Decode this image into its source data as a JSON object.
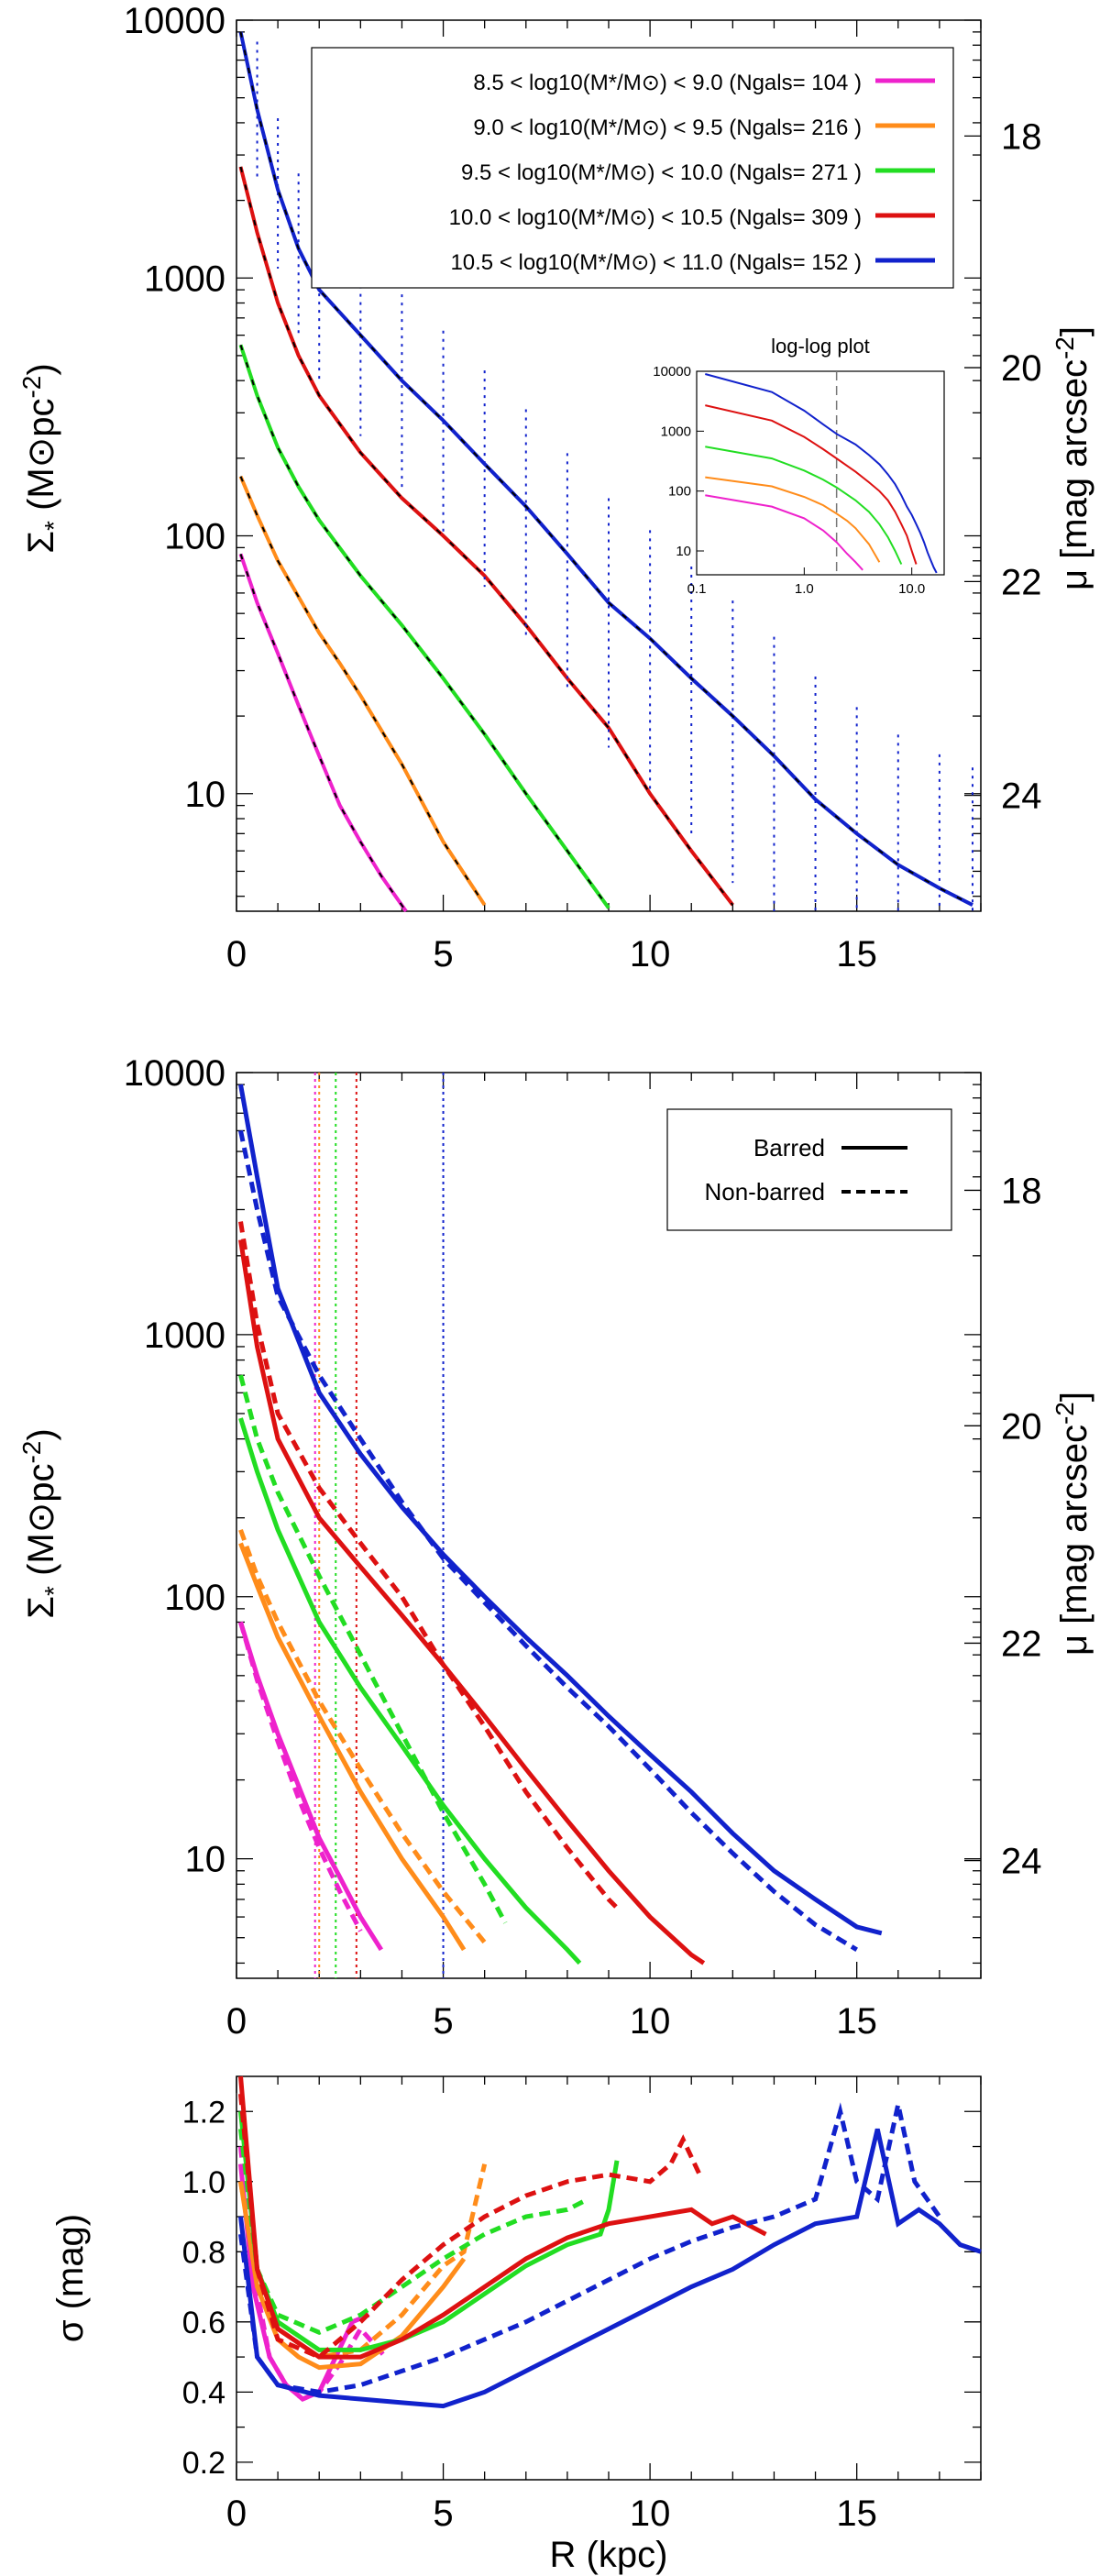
{
  "chart_data": [
    {
      "type": "line",
      "panel": "top",
      "ylabel_left": "Σ* (M⊙pc-2)",
      "ylabel_right": "μ [mag arcsec-2]",
      "xlim": [
        0,
        18
      ],
      "ylim": [
        3.5,
        10000
      ],
      "yscale": "log",
      "xticks": [
        "0",
        "5",
        "10",
        "15"
      ],
      "yticks": [
        "10",
        "100",
        "1000",
        "10000"
      ],
      "right_ticks": [
        "18",
        "20",
        "22",
        "24"
      ],
      "legend_location": "top-right",
      "legend": [
        {
          "label": "8.5 < log10(M*/M⊙) < 9.0  (Ngals= 104 )",
          "color": "#ee22cc"
        },
        {
          "label": "9.0 < log10(M*/M⊙) < 9.5  (Ngals= 216 )",
          "color": "#ff8c1a"
        },
        {
          "label": "9.5 < log10(M*/M⊙) < 10.0  (Ngals= 271 )",
          "color": "#22dd22"
        },
        {
          "label": "10.0 < log10(M*/M⊙) < 10.5  (Ngals= 309 )",
          "color": "#dd1111"
        },
        {
          "label": "10.5 < log10(M*/M⊙) < 11.0  (Ngals= 152 )",
          "color": "#1122cc"
        }
      ],
      "series": [
        {
          "color": "#ee22cc",
          "x": [
            0.1,
            0.5,
            1,
            1.5,
            2,
            2.5,
            3,
            3.5,
            4.1
          ],
          "y": [
            85,
            55,
            35,
            22,
            14,
            9,
            6.5,
            4.8,
            3.5
          ]
        },
        {
          "color": "#ff8c1a",
          "x": [
            0.1,
            0.5,
            1,
            1.5,
            2,
            2.5,
            3,
            4,
            5,
            6
          ],
          "y": [
            170,
            120,
            80,
            58,
            42,
            32,
            24,
            13,
            6.5,
            3.7
          ]
        },
        {
          "color": "#22dd22",
          "x": [
            0.1,
            0.5,
            1,
            1.5,
            2,
            3,
            4,
            5,
            6,
            7,
            8,
            9
          ],
          "y": [
            550,
            350,
            220,
            155,
            115,
            70,
            45,
            28,
            17,
            10,
            6,
            3.6
          ]
        },
        {
          "color": "#dd1111",
          "x": [
            0.1,
            0.5,
            1,
            1.5,
            2,
            3,
            4,
            5,
            6,
            7,
            8,
            9,
            10,
            11,
            12
          ],
          "y": [
            2700,
            1500,
            800,
            500,
            350,
            210,
            140,
            100,
            70,
            45,
            28,
            18,
            10,
            6,
            3.7
          ]
        },
        {
          "color": "#1122cc",
          "x": [
            0.1,
            0.5,
            1,
            1.5,
            2,
            3,
            4,
            5,
            6,
            7,
            8,
            9,
            10,
            11,
            12,
            13,
            14,
            15,
            16,
            17,
            17.8
          ],
          "y": [
            9000,
            4500,
            2200,
            1300,
            900,
            600,
            400,
            280,
            190,
            130,
            85,
            55,
            40,
            28,
            20,
            14,
            9.5,
            7,
            5.3,
            4.3,
            3.7
          ]
        }
      ],
      "inset": {
        "title": "log-log plot",
        "xscale": "log",
        "yscale": "log",
        "xlim": [
          0.1,
          20
        ],
        "ylim": [
          4,
          10000
        ],
        "xticks": [
          "0.1",
          "1.0",
          "10.0"
        ],
        "yticks": [
          "10",
          "100",
          "1000",
          "10000"
        ],
        "vline_x": 2.0
      }
    },
    {
      "type": "line",
      "panel": "middle",
      "ylabel_left": "Σ* (M⊙pc-2)",
      "ylabel_right": "μ [mag arcsec-2]",
      "xlim": [
        0,
        18
      ],
      "ylim": [
        3.5,
        10000
      ],
      "yscale": "log",
      "xticks": [
        "0",
        "5",
        "10",
        "15"
      ],
      "yticks": [
        "10",
        "100",
        "1000",
        "10000"
      ],
      "right_ticks": [
        "18",
        "20",
        "22",
        "24"
      ],
      "legend_location": "top-right",
      "legend": [
        {
          "label": "Barred",
          "style": "solid"
        },
        {
          "label": "Non-barred",
          "style": "dashed"
        }
      ],
      "vlines": [
        {
          "x": 1.9,
          "color": "#ee22cc"
        },
        {
          "x": 2.0,
          "color": "#ff8c1a"
        },
        {
          "x": 2.4,
          "color": "#22dd22"
        },
        {
          "x": 2.9,
          "color": "#dd1111"
        },
        {
          "x": 5.0,
          "color": "#1122cc"
        }
      ],
      "series": [
        {
          "color": "#ee22cc",
          "style": "solid",
          "x": [
            0.1,
            0.5,
            1,
            1.5,
            2,
            2.5,
            3,
            3.5
          ],
          "y": [
            80,
            50,
            30,
            19,
            12,
            8.5,
            6,
            4.5
          ]
        },
        {
          "color": "#ee22cc",
          "style": "dashed",
          "x": [
            0.1,
            0.5,
            1,
            1.5,
            2,
            2.5,
            3
          ],
          "y": [
            80,
            48,
            28,
            17,
            11,
            7.5,
            5.3
          ]
        },
        {
          "color": "#ff8c1a",
          "style": "solid",
          "x": [
            0.1,
            0.5,
            1,
            2,
            3,
            4,
            5,
            5.5
          ],
          "y": [
            160,
            110,
            70,
            35,
            18,
            10,
            6,
            4.5
          ]
        },
        {
          "color": "#ff8c1a",
          "style": "dashed",
          "x": [
            0.1,
            0.5,
            1,
            2,
            3,
            4,
            5,
            6
          ],
          "y": [
            180,
            120,
            80,
            40,
            22,
            12.5,
            7.5,
            4.8
          ]
        },
        {
          "color": "#22dd22",
          "style": "solid",
          "x": [
            0.1,
            0.5,
            1,
            2,
            3,
            4,
            5,
            6,
            7,
            8,
            8.3
          ],
          "y": [
            480,
            300,
            180,
            80,
            45,
            27,
            16,
            10,
            6.5,
            4.5,
            4
          ]
        },
        {
          "color": "#22dd22",
          "style": "dashed",
          "x": [
            0.1,
            0.5,
            1,
            2,
            3,
            4,
            5,
            6,
            6.5
          ],
          "y": [
            700,
            400,
            250,
            120,
            60,
            30,
            15,
            8,
            5.7
          ]
        },
        {
          "color": "#dd1111",
          "style": "solid",
          "x": [
            0.1,
            0.5,
            1,
            2,
            3,
            4,
            5,
            6,
            7,
            8,
            9,
            10,
            11,
            11.3
          ],
          "y": [
            2300,
            900,
            400,
            200,
            130,
            85,
            55,
            35,
            22,
            14,
            9,
            6,
            4.3,
            4
          ]
        },
        {
          "color": "#dd1111",
          "style": "dashed",
          "x": [
            0.1,
            0.5,
            1,
            2,
            3,
            4,
            5,
            6,
            7,
            8,
            9,
            9.2
          ],
          "y": [
            2700,
            1100,
            500,
            260,
            160,
            100,
            55,
            32,
            18,
            11,
            7,
            6.5
          ]
        },
        {
          "color": "#1122cc",
          "style": "solid",
          "x": [
            0.1,
            0.5,
            1,
            2,
            3,
            4,
            5,
            6,
            7,
            8,
            9,
            10,
            11,
            12,
            13,
            14,
            15,
            15.6
          ],
          "y": [
            9000,
            4000,
            1500,
            600,
            350,
            220,
            145,
            100,
            70,
            50,
            35,
            25,
            18,
            12.5,
            9,
            7,
            5.5,
            5.2
          ]
        },
        {
          "color": "#1122cc",
          "style": "dashed",
          "x": [
            0.1,
            0.5,
            1,
            2,
            3,
            4,
            5,
            6,
            7,
            8,
            9,
            10,
            11,
            12,
            13,
            14,
            15
          ],
          "y": [
            6000,
            3000,
            1400,
            700,
            400,
            230,
            140,
            95,
            65,
            45,
            32,
            22,
            15,
            10.5,
            7.5,
            5.6,
            4.5
          ]
        }
      ]
    },
    {
      "type": "line",
      "panel": "bottom",
      "xlabel": "R (kpc)",
      "ylabel": "σ (mag)",
      "xlim": [
        0,
        18
      ],
      "ylim": [
        0.15,
        1.3
      ],
      "xticks": [
        "0",
        "5",
        "10",
        "15"
      ],
      "yticks": [
        "0.2",
        "0.4",
        "0.6",
        "0.8",
        "1.0",
        "1.2"
      ],
      "series": [
        {
          "color": "#ee22cc",
          "style": "solid",
          "x": [
            0.1,
            0.4,
            0.8,
            1.2,
            1.6,
            2.0,
            2.4,
            2.8,
            3.2
          ],
          "y": [
            1.05,
            0.7,
            0.5,
            0.42,
            0.38,
            0.4,
            0.5,
            0.6,
            0.62
          ]
        },
        {
          "color": "#ee22cc",
          "style": "dashed",
          "x": [
            0.1,
            0.4,
            0.8,
            1.2,
            1.6,
            2.0,
            2.5,
            3.0,
            3.6
          ],
          "y": [
            1.1,
            0.75,
            0.5,
            0.42,
            0.38,
            0.4,
            0.48,
            0.58,
            0.5
          ]
        },
        {
          "color": "#ff8c1a",
          "style": "solid",
          "x": [
            0.1,
            0.5,
            1,
            1.5,
            2,
            3,
            4,
            4.5,
            5,
            5.5
          ],
          "y": [
            1.0,
            0.7,
            0.55,
            0.5,
            0.47,
            0.48,
            0.56,
            0.63,
            0.7,
            0.78
          ]
        },
        {
          "color": "#ff8c1a",
          "style": "dashed",
          "x": [
            0.1,
            0.5,
            1,
            2,
            3,
            4,
            5,
            5.5,
            5.8,
            6.0
          ],
          "y": [
            1.0,
            0.72,
            0.58,
            0.5,
            0.52,
            0.62,
            0.76,
            0.8,
            0.95,
            1.05
          ]
        },
        {
          "color": "#22dd22",
          "style": "solid",
          "x": [
            0.1,
            0.5,
            1,
            2,
            3,
            4,
            5,
            6,
            7,
            8,
            8.8,
            9.0,
            9.2
          ],
          "y": [
            1.2,
            0.75,
            0.6,
            0.52,
            0.52,
            0.55,
            0.6,
            0.68,
            0.76,
            0.82,
            0.85,
            0.92,
            1.06
          ]
        },
        {
          "color": "#22dd22",
          "style": "dashed",
          "x": [
            0.1,
            0.5,
            1,
            2,
            3,
            4,
            5,
            6,
            7,
            8,
            8.5
          ],
          "y": [
            1.15,
            0.75,
            0.62,
            0.57,
            0.62,
            0.7,
            0.78,
            0.85,
            0.9,
            0.92,
            0.95
          ]
        },
        {
          "color": "#dd1111",
          "style": "solid",
          "x": [
            0.1,
            0.5,
            1,
            2,
            3,
            4,
            5,
            6,
            7,
            8,
            9,
            10,
            11,
            11.5,
            12,
            12.8
          ],
          "y": [
            1.3,
            0.75,
            0.58,
            0.5,
            0.5,
            0.55,
            0.62,
            0.7,
            0.78,
            0.84,
            0.88,
            0.9,
            0.92,
            0.88,
            0.9,
            0.85
          ]
        },
        {
          "color": "#dd1111",
          "style": "dashed",
          "x": [
            0.1,
            0.5,
            1,
            2,
            3,
            4,
            5,
            6,
            7,
            8,
            9,
            10,
            10.5,
            10.8,
            11.2
          ],
          "y": [
            1.25,
            0.75,
            0.55,
            0.5,
            0.6,
            0.72,
            0.82,
            0.9,
            0.96,
            1.0,
            1.02,
            1.0,
            1.05,
            1.12,
            1.02
          ]
        },
        {
          "color": "#1122cc",
          "style": "solid",
          "x": [
            0.1,
            0.5,
            1,
            2,
            3,
            4,
            5,
            6,
            7,
            8,
            9,
            10,
            11,
            12,
            13,
            14,
            15,
            15.5,
            16,
            16.5,
            17,
            17.5,
            18
          ],
          "y": [
            0.9,
            0.5,
            0.42,
            0.39,
            0.38,
            0.37,
            0.36,
            0.4,
            0.46,
            0.52,
            0.58,
            0.64,
            0.7,
            0.75,
            0.82,
            0.88,
            0.9,
            1.15,
            0.88,
            0.92,
            0.88,
            0.82,
            0.8
          ]
        },
        {
          "color": "#1122cc",
          "style": "dashed",
          "x": [
            0.1,
            0.5,
            1,
            2,
            3,
            4,
            5,
            6,
            7,
            8,
            9,
            10,
            11,
            12,
            13,
            14,
            14.6,
            15,
            15.5,
            16,
            16.4,
            17
          ],
          "y": [
            0.85,
            0.5,
            0.42,
            0.4,
            0.42,
            0.46,
            0.5,
            0.55,
            0.6,
            0.66,
            0.72,
            0.78,
            0.83,
            0.87,
            0.9,
            0.95,
            1.2,
            1.0,
            0.95,
            1.22,
            1.0,
            0.9
          ]
        }
      ]
    }
  ]
}
